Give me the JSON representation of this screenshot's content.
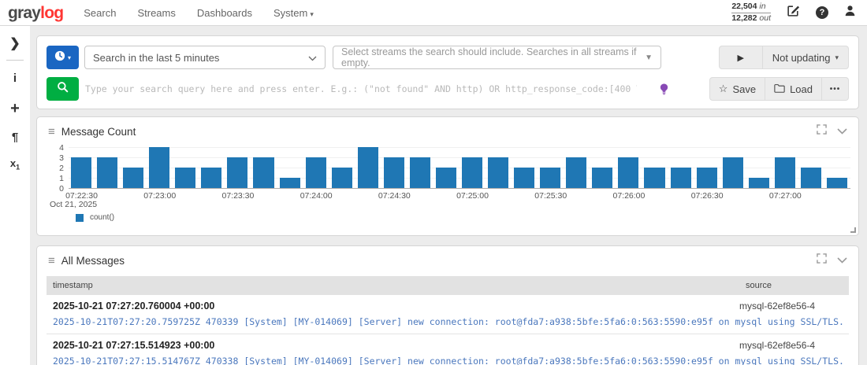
{
  "navbar": {
    "logo_gray": "gray",
    "logo_log": "log",
    "items": [
      {
        "label": "Search"
      },
      {
        "label": "Streams"
      },
      {
        "label": "Dashboards"
      },
      {
        "label": "System"
      }
    ],
    "throughput": {
      "in_value": "22,504",
      "in_unit": "in",
      "out_value": "12,282",
      "out_unit": "out"
    }
  },
  "sidebar": {
    "expand_glyph": "❯",
    "info_glyph": "i",
    "add_glyph": "+",
    "formatting_glyph": "¶",
    "highlighting_glyph": "x"
  },
  "search_controls": {
    "time_range_label": "Search in the last 5 minutes",
    "streams_placeholder": "Select streams the search should include. Searches in all streams if empty.",
    "query_placeholder": "Type your search query here and press enter. E.g.: (\"not found\" AND http) OR http_response_code:[400 TO 404]",
    "play_glyph": "▶",
    "refresh_label": "Not updating",
    "star_glyph": "☆",
    "save_label": "Save",
    "load_label": "Load",
    "more_glyph": "•••"
  },
  "widgets": {
    "message_count": {
      "title": "Message Count",
      "legend": "count()",
      "date_label": "Oct 21, 2025"
    },
    "all_messages": {
      "title": "All Messages",
      "columns": {
        "timestamp": "timestamp",
        "source": "source"
      },
      "rows": [
        {
          "timestamp": "2025-10-21 07:27:20.760004 +00:00",
          "source": "mysql-62ef8e56-4",
          "message": "2025-10-21T07:27:20.759725Z 470339 [System] [MY-014069] [Server] new connection: root@fda7:a938:5bfe:5fa6:0:563:5590:e95f on mysql using SSL/TLS."
        },
        {
          "timestamp": "2025-10-21 07:27:15.514923 +00:00",
          "source": "mysql-62ef8e56-4",
          "message": "2025-10-21T07:27:15.514767Z 470338 [System] [MY-014069] [Server] new connection: root@fda7:a938:5bfe:5fa6:0:563:5590:e95f on mysql using SSL/TLS."
        }
      ]
    }
  },
  "chart_data": {
    "type": "bar",
    "title": "Message Count",
    "x": [
      "07:22:30",
      "07:22:40",
      "07:22:50",
      "07:23:00",
      "07:23:10",
      "07:23:20",
      "07:23:30",
      "07:23:40",
      "07:23:50",
      "07:24:00",
      "07:24:10",
      "07:24:20",
      "07:24:30",
      "07:24:40",
      "07:24:50",
      "07:25:00",
      "07:25:10",
      "07:25:20",
      "07:25:30",
      "07:25:40",
      "07:25:50",
      "07:26:00",
      "07:26:10",
      "07:26:20",
      "07:26:30",
      "07:26:40",
      "07:26:50",
      "07:27:00",
      "07:27:10",
      "07:27:20"
    ],
    "series": [
      {
        "name": "count()",
        "values": [
          3,
          3,
          2,
          4,
          2,
          2,
          3,
          3,
          1,
          3,
          2,
          4,
          3,
          3,
          2,
          3,
          3,
          2,
          2,
          3,
          2,
          3,
          2,
          2,
          2,
          3,
          1,
          3,
          2,
          1
        ]
      }
    ],
    "xtick_labels": [
      "07:22:30",
      "07:23:00",
      "07:23:30",
      "07:24:00",
      "07:24:30",
      "07:25:00",
      "07:25:30",
      "07:26:00",
      "07:26:30",
      "07:27:00"
    ],
    "xtick_every": 3,
    "yticks": [
      0,
      1,
      2,
      3,
      4
    ],
    "ylim": [
      0,
      4
    ],
    "date_label": "Oct 21, 2025",
    "legend_position": "bottom-left",
    "grid": true,
    "bar_color": "#1f77b4",
    "xlabel": "",
    "ylabel": ""
  },
  "colors": {
    "accent_blue": "#1a66c2",
    "accent_green": "#00ae42",
    "brand_red": "#ff3633",
    "bar_blue": "#1f77b4",
    "message_link": "#4a77bd",
    "bulb_purple": "#8849b5"
  }
}
